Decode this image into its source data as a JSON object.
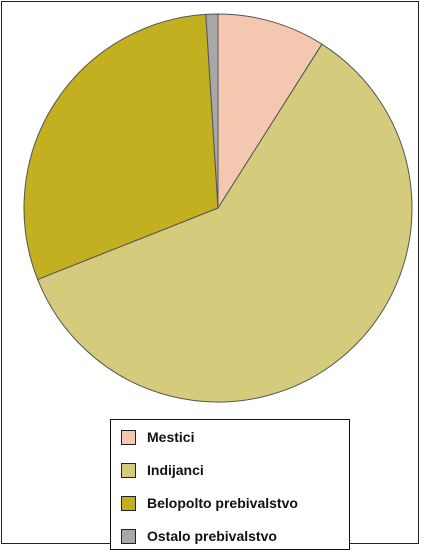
{
  "chart_data": {
    "type": "pie",
    "title": "",
    "slices": [
      {
        "label": "Mestici",
        "value": 9,
        "color": "#f4c8b0"
      },
      {
        "label": "Indijanci",
        "value": 60,
        "color": "#d4cc7c"
      },
      {
        "label": "Belopolto prebivalstvo",
        "value": 30,
        "color": "#c2b020"
      },
      {
        "label": "Ostalo prebivalstvo",
        "value": 1,
        "color": "#a8a8a8"
      }
    ],
    "start_angle_deg": 0,
    "direction": "clockwise",
    "legend_position": "bottom"
  },
  "legend": {
    "items": [
      {
        "label": "Mestici",
        "color": "#f4c8b0"
      },
      {
        "label": "Indijanci",
        "color": "#d4cc7c"
      },
      {
        "label": "Belopolto prebivalstvo",
        "color": "#c2b020"
      },
      {
        "label": "Ostalo prebivalstvo",
        "color": "#a8a8a8"
      }
    ]
  }
}
